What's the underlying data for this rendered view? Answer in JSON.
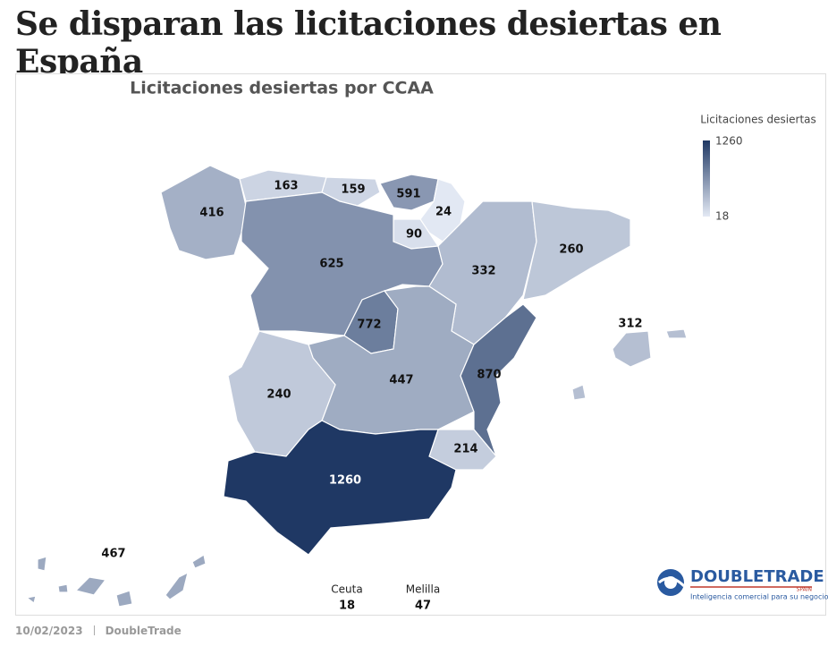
{
  "headline": "Se disparan las licitaciones desiertas en España",
  "chart_data": {
    "type": "choropleth",
    "title": "Licitaciones desiertas por CCAA",
    "legend_title": "Licitaciones desiertas",
    "colorlim": [
      18,
      1260
    ],
    "color_low": "#e3e9f4",
    "color_high": "#1f3864",
    "values": [
      416,
      163,
      159,
      591,
      24,
      90,
      625,
      772,
      332,
      260,
      312,
      447,
      870,
      240,
      214,
      1260,
      467
    ],
    "enclaves": [
      {
        "name": "Ceuta",
        "value": 18
      },
      {
        "name": "Melilla",
        "value": 47
      }
    ]
  },
  "logo": {
    "name": "DOUBLETRADE",
    "country": "SPAIN",
    "tagline": "Inteligencia comercial para su negocio"
  },
  "footer": {
    "date": "10/02/2023",
    "source": "DoubleTrade"
  }
}
